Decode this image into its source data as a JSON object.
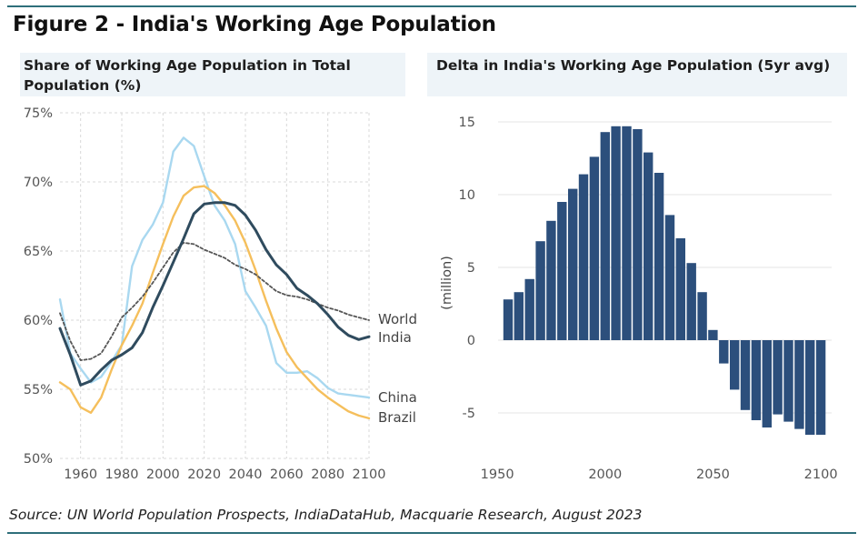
{
  "figure": {
    "title": "Figure 2 - India's Working Age Population",
    "source": "Source: UN World Population Prospects, IndiaDataHub, Macquarie Research, August 2023"
  },
  "colors": {
    "rule": "#2e6f7b",
    "world": "#555555",
    "india": "#2f4b5e",
    "china": "#a9d8f0",
    "brazil": "#f5bf5c",
    "bar": "#2c4f7c",
    "grid": "#d9d9d9",
    "tick_text": "#555555"
  },
  "chart_data": [
    {
      "type": "line",
      "title": "Share of Working Age Population in Total Population (%)",
      "title_lines": [
        "Share of Working Age Population in Total",
        "Population (%)"
      ],
      "xlabel": "",
      "ylabel": "",
      "xlim": [
        1950,
        2100
      ],
      "ylim": [
        50,
        75
      ],
      "xticks": [
        1960,
        1980,
        2000,
        2020,
        2040,
        2060,
        2080,
        2100
      ],
      "yticks": [
        50,
        55,
        60,
        65,
        70,
        75
      ],
      "ytick_labels": [
        "50%",
        "55%",
        "60%",
        "65%",
        "70%",
        "75%"
      ],
      "grid": true,
      "series": [
        {
          "name": "China",
          "label": "China",
          "color_key": "china",
          "x": [
            1950,
            1955,
            1960,
            1965,
            1970,
            1975,
            1980,
            1985,
            1990,
            1995,
            2000,
            2005,
            2010,
            2015,
            2020,
            2025,
            2030,
            2035,
            2040,
            2045,
            2050,
            2055,
            2060,
            2065,
            2070,
            2075,
            2080,
            2085,
            2090,
            2095,
            2100
          ],
          "y": [
            61.5,
            57.6,
            56.5,
            55.5,
            55.9,
            57.0,
            58.2,
            63.9,
            65.8,
            66.9,
            68.5,
            72.2,
            73.2,
            72.6,
            70.4,
            68.3,
            67.2,
            65.5,
            62.1,
            60.9,
            59.6,
            56.9,
            56.2,
            56.2,
            56.3,
            55.8,
            55.1,
            54.7,
            54.6,
            54.5,
            54.4
          ]
        },
        {
          "name": "Brazil",
          "label": "Brazil",
          "color_key": "brazil",
          "x": [
            1950,
            1955,
            1960,
            1965,
            1970,
            1975,
            1980,
            1985,
            1990,
            1995,
            2000,
            2005,
            2010,
            2015,
            2020,
            2025,
            2030,
            2035,
            2040,
            2045,
            2050,
            2055,
            2060,
            2065,
            2070,
            2075,
            2080,
            2085,
            2090,
            2095,
            2100
          ],
          "y": [
            55.5,
            55.0,
            53.7,
            53.3,
            54.4,
            56.4,
            58.2,
            59.6,
            61.2,
            63.4,
            65.5,
            67.5,
            69.0,
            69.6,
            69.7,
            69.2,
            68.3,
            67.2,
            65.6,
            63.6,
            61.4,
            59.4,
            57.7,
            56.6,
            55.8,
            55.0,
            54.4,
            53.9,
            53.4,
            53.1,
            52.9
          ]
        },
        {
          "name": "World",
          "label": "World",
          "color_key": "world",
          "dashed": true,
          "x": [
            1950,
            1955,
            1960,
            1965,
            1970,
            1975,
            1980,
            1985,
            1990,
            1995,
            2000,
            2005,
            2010,
            2015,
            2020,
            2025,
            2030,
            2035,
            2040,
            2045,
            2050,
            2055,
            2060,
            2065,
            2070,
            2075,
            2080,
            2085,
            2090,
            2095,
            2100
          ],
          "y": [
            60.5,
            58.5,
            57.1,
            57.2,
            57.6,
            58.8,
            60.2,
            60.9,
            61.7,
            62.7,
            63.8,
            64.9,
            65.6,
            65.5,
            65.1,
            64.8,
            64.5,
            64.0,
            63.7,
            63.3,
            62.7,
            62.1,
            61.8,
            61.7,
            61.5,
            61.2,
            60.9,
            60.7,
            60.4,
            60.2,
            60.0
          ]
        },
        {
          "name": "India",
          "label": "India",
          "color_key": "india",
          "x": [
            1950,
            1955,
            1960,
            1965,
            1970,
            1975,
            1980,
            1985,
            1990,
            1995,
            2000,
            2005,
            2010,
            2015,
            2020,
            2025,
            2030,
            2035,
            2040,
            2045,
            2050,
            2055,
            2060,
            2065,
            2070,
            2075,
            2080,
            2085,
            2090,
            2095,
            2100
          ],
          "y": [
            59.4,
            57.5,
            55.3,
            55.6,
            56.4,
            57.1,
            57.5,
            58.0,
            59.1,
            60.9,
            62.5,
            64.2,
            65.9,
            67.7,
            68.4,
            68.5,
            68.5,
            68.3,
            67.6,
            66.5,
            65.1,
            64.0,
            63.3,
            62.3,
            61.8,
            61.2,
            60.4,
            59.5,
            58.9,
            58.6,
            58.8
          ]
        }
      ]
    },
    {
      "type": "bar",
      "title": "Delta in India's Working Age Population (5yr avg)",
      "xlabel": "",
      "ylabel": "(million)",
      "xlim": [
        1947,
        2105
      ],
      "ylim": [
        -7.5,
        16
      ],
      "xticks": [
        1950,
        2000,
        2050,
        2100
      ],
      "yticks": [
        -5,
        0,
        5,
        10,
        15
      ],
      "grid": true,
      "x": [
        1955,
        1960,
        1965,
        1970,
        1975,
        1980,
        1985,
        1990,
        1995,
        2000,
        2005,
        2010,
        2015,
        2020,
        2025,
        2030,
        2035,
        2040,
        2045,
        2050,
        2055,
        2060,
        2065,
        2070,
        2075,
        2080,
        2085,
        2090,
        2095,
        2100
      ],
      "values": [
        2.8,
        3.3,
        4.2,
        6.8,
        8.2,
        9.5,
        10.4,
        11.4,
        12.6,
        14.3,
        14.7,
        14.7,
        14.5,
        12.9,
        11.5,
        8.6,
        7.0,
        5.3,
        3.3,
        0.7,
        -1.6,
        -3.4,
        -4.8,
        -5.5,
        -6.0,
        -5.1,
        -5.6,
        -6.1,
        -6.5,
        -6.5
      ]
    }
  ]
}
